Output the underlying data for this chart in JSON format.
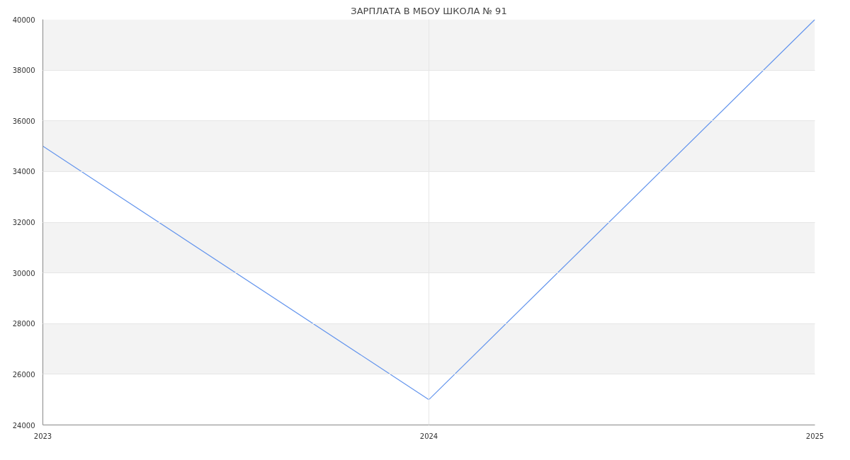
{
  "chart_data": {
    "type": "line",
    "title": "ЗАРПЛАТА В МБОУ ШКОЛА № 91",
    "x": [
      2023,
      2024,
      2025
    ],
    "series": [
      {
        "color": "#6495ed",
        "values": [
          35000,
          25000,
          40000
        ]
      }
    ],
    "xlim": [
      2023,
      2025
    ],
    "xticks": [
      2023,
      2024,
      2025
    ],
    "ylim": [
      24000,
      40000
    ],
    "yticks": [
      24000,
      26000,
      28000,
      30000,
      32000,
      34000,
      36000,
      38000,
      40000
    ],
    "bands": [
      {
        "axis": "y",
        "from": 26000,
        "to": 28000,
        "color": "#f3f3f3"
      },
      {
        "axis": "y",
        "from": 30000,
        "to": 32000,
        "color": "#f3f3f3"
      },
      {
        "axis": "y",
        "from": 34000,
        "to": 36000,
        "color": "#f3f3f3"
      },
      {
        "axis": "y",
        "from": 38000,
        "to": 40000,
        "color": "#f3f3f3"
      }
    ],
    "grid": true
  }
}
